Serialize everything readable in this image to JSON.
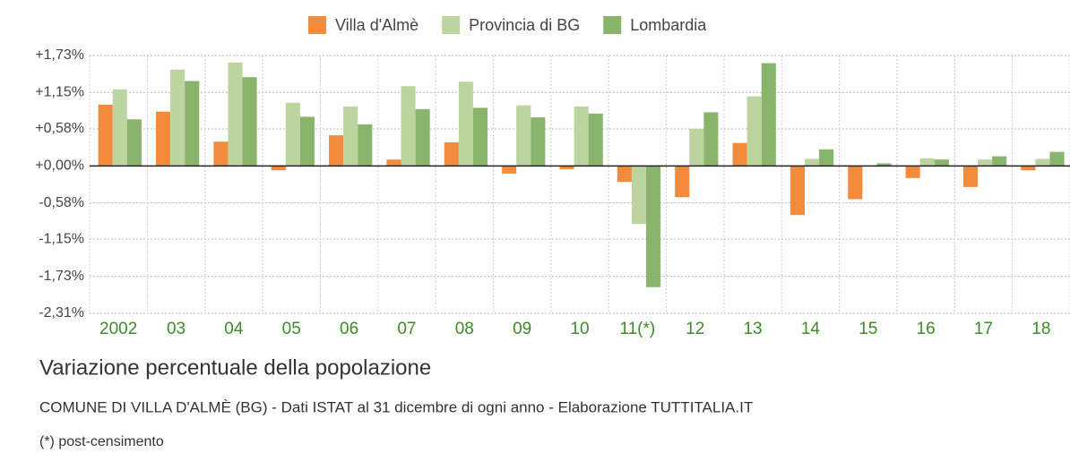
{
  "chart_data": {
    "type": "bar",
    "title": "Variazione percentuale della popolazione",
    "subtitle": "COMUNE DI VILLA D'ALMÈ (BG) - Dati ISTAT al 31 dicembre di ogni anno - Elaborazione TUTTITALIA.IT",
    "note": "(*) post-censimento",
    "categories": [
      "2002",
      "03",
      "04",
      "05",
      "06",
      "07",
      "08",
      "09",
      "10",
      "11(*)",
      "12",
      "13",
      "14",
      "15",
      "16",
      "17",
      "18"
    ],
    "series": [
      {
        "name": "Villa d'Almè",
        "color": "#f28b3c",
        "values": [
          0.96,
          0.85,
          0.38,
          -0.07,
          0.48,
          0.1,
          0.37,
          -0.12,
          -0.05,
          -0.25,
          -0.49,
          0.36,
          -0.77,
          -0.52,
          -0.19,
          -0.33,
          -0.07
        ]
      },
      {
        "name": "Provincia di BG",
        "color": "#bcd5a0",
        "values": [
          1.2,
          1.51,
          1.62,
          0.99,
          0.93,
          1.25,
          1.32,
          0.95,
          0.93,
          -0.91,
          0.58,
          1.09,
          0.11,
          0,
          0.12,
          0.1,
          0.11
        ]
      },
      {
        "name": "Lombardia",
        "color": "#88b46c",
        "values": [
          0.73,
          1.33,
          1.39,
          0.77,
          0.65,
          0.89,
          0.91,
          0.76,
          0.82,
          -1.9,
          0.84,
          1.61,
          0.26,
          0.04,
          0.1,
          0.15,
          0.22
        ]
      }
    ],
    "ylim": [
      -2.31,
      1.73
    ],
    "yticks": [
      {
        "value": 1.73,
        "label": "+1,73%"
      },
      {
        "value": 1.15,
        "label": "+1,15%"
      },
      {
        "value": 0.58,
        "label": "+0,58%"
      },
      {
        "value": 0,
        "label": "+0,00%"
      },
      {
        "value": -0.58,
        "label": "-0,58%"
      },
      {
        "value": -1.15,
        "label": "-1,15%"
      },
      {
        "value": -1.73,
        "label": "-1,73%"
      },
      {
        "value": -2.31,
        "label": "-2,31%"
      }
    ],
    "grid": true,
    "legend": "top"
  }
}
